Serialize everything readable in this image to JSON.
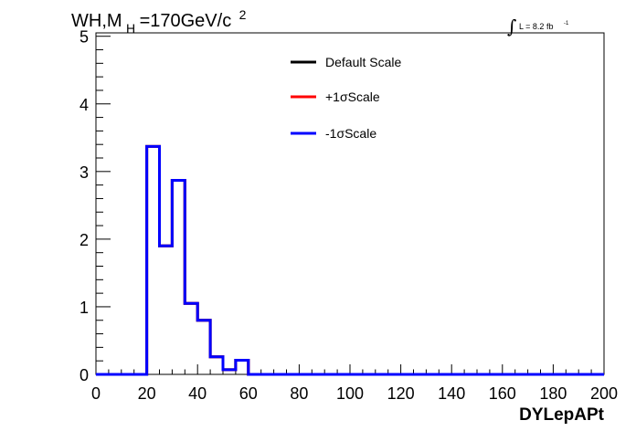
{
  "chart_data": {
    "type": "line",
    "title": {
      "main": "WH,M",
      "sub": "H",
      "rest": "=170GeV/c",
      "sup": "2"
    },
    "luminosity": {
      "integral": "∫",
      "text": "L = 8.2 fb",
      "sup": "-1"
    },
    "xlabel": "DYLepAPt",
    "ylabel": "",
    "xlim": [
      0,
      200
    ],
    "ylim": [
      0,
      5.05
    ],
    "x_ticks": [
      0,
      20,
      40,
      60,
      80,
      100,
      120,
      140,
      160,
      180,
      200
    ],
    "y_ticks": [
      0,
      1,
      2,
      3,
      4,
      5
    ],
    "bin_edges": [
      0,
      5,
      10,
      15,
      20,
      25,
      30,
      35,
      40,
      45,
      50,
      55,
      60,
      65,
      70,
      75,
      80,
      85,
      90,
      95,
      100,
      105,
      110,
      115,
      120,
      125,
      130,
      135,
      140,
      145,
      150,
      155,
      160,
      165,
      170,
      175,
      180,
      185,
      190,
      195,
      200
    ],
    "series": [
      {
        "name": "Default Scale",
        "color": "#000000",
        "values": [
          0,
          0,
          0,
          0,
          3.37,
          1.9,
          2.87,
          1.05,
          0.8,
          0.26,
          0.07,
          0.21,
          0,
          0,
          0,
          0,
          0,
          0,
          0,
          0,
          0,
          0,
          0,
          0,
          0,
          0,
          0,
          0,
          0,
          0,
          0,
          0,
          0,
          0,
          0,
          0,
          0,
          0,
          0,
          0
        ]
      },
      {
        "name": "+1σScale",
        "color": "#ff0000",
        "values": [
          0,
          0,
          0,
          0,
          3.37,
          1.9,
          2.87,
          1.05,
          0.8,
          0.26,
          0.07,
          0.21,
          0,
          0,
          0,
          0,
          0,
          0,
          0,
          0,
          0,
          0,
          0,
          0,
          0,
          0,
          0,
          0,
          0,
          0,
          0,
          0,
          0,
          0,
          0,
          0,
          0,
          0,
          0,
          0
        ]
      },
      {
        "name": "-1σScale",
        "color": "#0000ff",
        "values": [
          0,
          0,
          0,
          0,
          3.37,
          1.9,
          2.87,
          1.05,
          0.8,
          0.26,
          0.07,
          0.21,
          0,
          0,
          0,
          0,
          0,
          0,
          0,
          0,
          0,
          0,
          0,
          0,
          0,
          0,
          0,
          0,
          0,
          0,
          0,
          0,
          0,
          0,
          0,
          0,
          0,
          0,
          0,
          0
        ]
      }
    ],
    "legend": {
      "position": "top-center"
    },
    "grid": false
  }
}
